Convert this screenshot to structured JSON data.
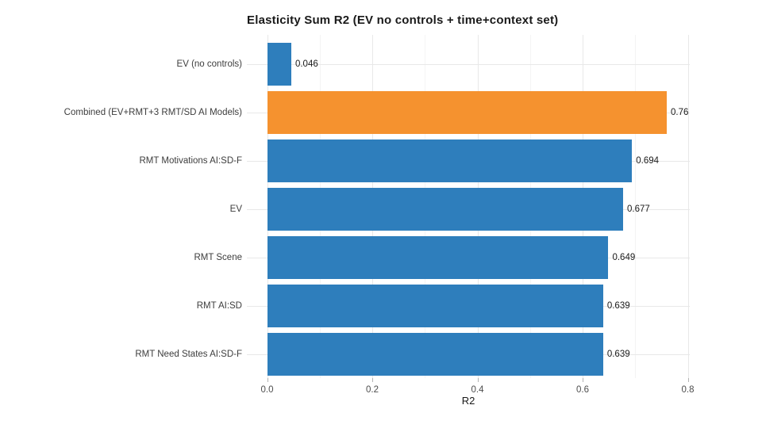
{
  "chart_data": {
    "type": "bar",
    "orientation": "horizontal",
    "title": "Elasticity Sum R2 (EV no controls + time+context set)",
    "xlabel": "R2",
    "ylabel": "",
    "categories": [
      "EV (no controls)",
      "Combined (EV+RMT+3 RMT/SD AI Models)",
      "RMT Motivations AI:SD-F",
      "EV",
      "RMT Scene",
      "RMT AI:SD",
      "RMT Need States AI:SD-F"
    ],
    "values": [
      0.046,
      0.76,
      0.694,
      0.677,
      0.649,
      0.639,
      0.639
    ],
    "value_labels": [
      "0.046",
      "0.76",
      "0.694",
      "0.677",
      "0.649",
      "0.639",
      "0.639"
    ],
    "highlight_index": 1,
    "xlim": [
      0,
      0.8
    ],
    "x_major_ticks": [
      0.0,
      0.2,
      0.4,
      0.6,
      0.8
    ],
    "x_major_tick_labels": [
      "0.0",
      "0.2",
      "0.4",
      "0.6",
      "0.8"
    ],
    "x_minor_ticks": [
      0.1,
      0.3,
      0.5,
      0.7
    ],
    "grid": true,
    "legend": "none",
    "colors": {
      "bar_default": "#2E7EBC",
      "bar_highlight": "#F5922F",
      "grid_major": "#E8E8E8",
      "grid_minor": "#F4F4F4",
      "axis_tick": "#B3B3B3",
      "tick_label": "#4D4D4D",
      "category_label": "#3D3D3D",
      "value_label": "#1A1A1A",
      "title": "#1A1A1A",
      "background": "#FFFFFF"
    }
  }
}
